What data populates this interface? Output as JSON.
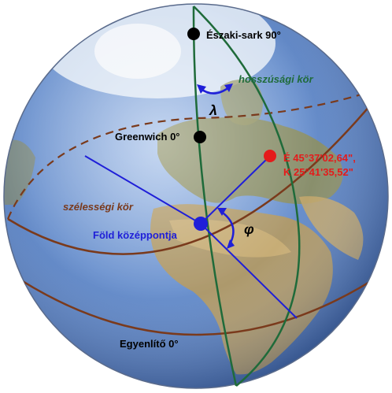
{
  "labels": {
    "north_pole": "Északi-sark 90°",
    "meridian": "hosszúsági kör",
    "lambda": "λ",
    "greenwich": "Greenwich 0°",
    "coord_line1": "É 45°37'02,64\",",
    "coord_line2": "K 25°41'35,52\"",
    "parallel": "szélességi kör",
    "phi": "φ",
    "earth_center": "Föld középpontja",
    "equator": "Egyenlítő 0°"
  },
  "colors": {
    "meridian": "#1f6b3a",
    "parallel": "#7a3a1c",
    "vector": "#1f1fd8",
    "point": "#e41b1b",
    "pole": "#000000",
    "ocean": "#5d86c4",
    "land": "#8a8a5a"
  }
}
